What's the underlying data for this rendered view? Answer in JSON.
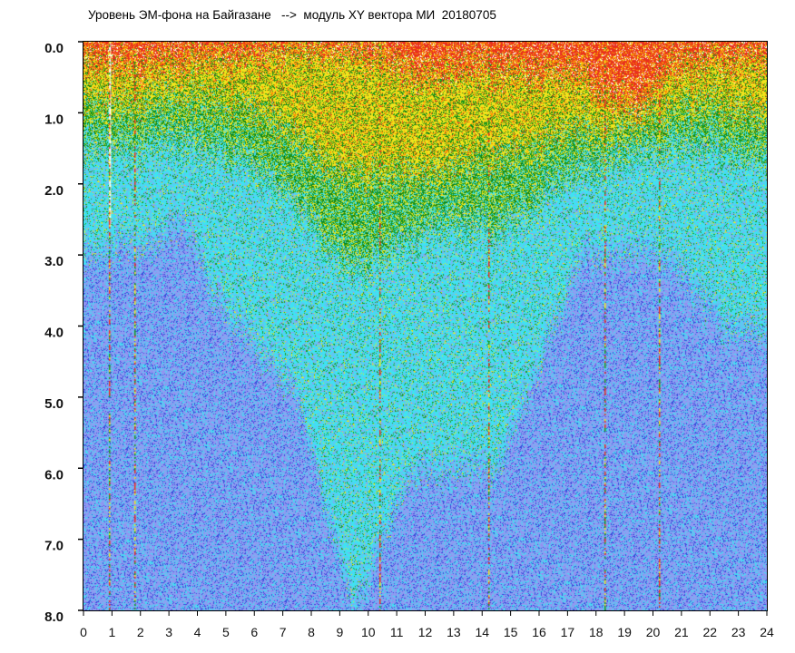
{
  "chart_data": {
    "type": "heatmap",
    "title": "Уровень ЭМ-фона на Байгазане   -->  модуль XY вектора МИ  20180705",
    "xlabel": "",
    "ylabel": "",
    "xlim": [
      0,
      24
    ],
    "ylim": [
      0,
      8
    ],
    "y_inverted": true,
    "x_ticks": [
      "0",
      "1",
      "2",
      "3",
      "4",
      "5",
      "6",
      "7",
      "8",
      "9",
      "10",
      "11",
      "12",
      "13",
      "14",
      "15",
      "16",
      "17",
      "18",
      "19",
      "20",
      "21",
      "22",
      "23",
      "24"
    ],
    "y_ticks": [
      "0.0",
      "1.0",
      "2.0",
      "3.0",
      "4.0",
      "5.0",
      "6.0",
      "7.0",
      "8.0"
    ],
    "grid": false,
    "legend": "none",
    "hour_bins": [
      0,
      1,
      2,
      3,
      4,
      5,
      6,
      7,
      8,
      9,
      10,
      11,
      12,
      13,
      14,
      15,
      16,
      17,
      18,
      19,
      20,
      21,
      22,
      23
    ],
    "zone_lower_bounds": {
      "red": [
        0.3,
        0.3,
        0.3,
        0.3,
        0.2,
        0.2,
        0.15,
        0.1,
        0.1,
        0.15,
        0.3,
        0.4,
        0.4,
        0.4,
        0.4,
        0.4,
        0.4,
        0.5,
        0.8,
        1.0,
        0.4,
        0.3,
        0.2,
        0.2
      ],
      "yellow": [
        0.9,
        0.9,
        0.8,
        0.8,
        0.8,
        0.9,
        1.1,
        1.4,
        1.7,
        1.9,
        1.9,
        1.8,
        1.8,
        1.7,
        1.6,
        1.5,
        1.3,
        1.2,
        1.3,
        1.2,
        1.0,
        0.9,
        0.9,
        1.0
      ],
      "green": [
        1.5,
        1.5,
        1.4,
        1.4,
        1.5,
        1.6,
        1.9,
        2.3,
        2.8,
        3.2,
        3.0,
        2.7,
        2.5,
        2.6,
        2.6,
        2.4,
        2.0,
        1.8,
        1.7,
        1.6,
        1.5,
        1.5,
        1.5,
        1.6
      ],
      "cyan": [
        3.0,
        2.8,
        2.8,
        2.5,
        3.5,
        4.0,
        4.5,
        5.0,
        6.5,
        8.0,
        7.0,
        6.0,
        6.0,
        6.0,
        6.0,
        5.0,
        4.0,
        3.0,
        3.0,
        3.0,
        3.0,
        3.5,
        4.0,
        4.0
      ]
    },
    "vertical_streaks_hours": [
      0.9,
      1.8,
      10.4,
      14.2,
      18.3,
      20.2
    ],
    "colors": {
      "red": "#e8301e",
      "orange": "#ff8a00",
      "yellow": "#f2e41c",
      "green": "#1c9a1c",
      "cyan": "#3fe2f2",
      "lightblue": "#8aa2f2",
      "blue": "#3a48dc"
    }
  }
}
